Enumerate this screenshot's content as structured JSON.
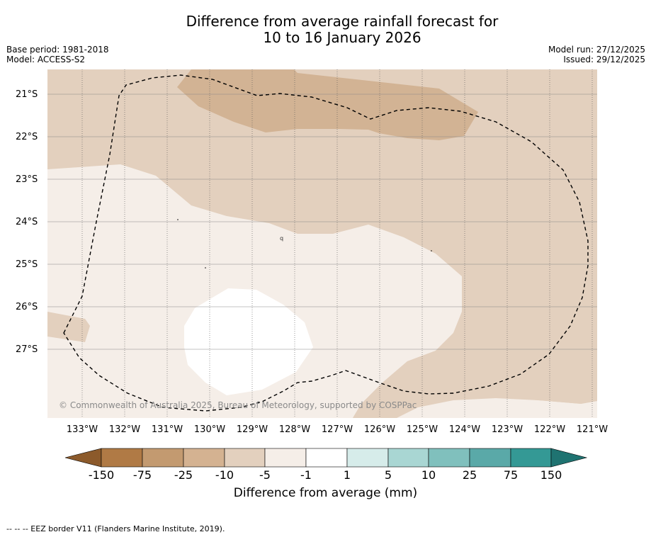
{
  "header": {
    "title_line1": "Difference from average rainfall forecast for",
    "title_line2": "10 to 16 January 2026",
    "base_period": "Base period: 1981-2018",
    "model": "Model: ACCESS-S2",
    "model_run": "Model run: 27/12/2025",
    "issued": "Issued: 29/12/2025"
  },
  "map": {
    "lat_labels": [
      "21°S",
      "22°S",
      "23°S",
      "24°S",
      "25°S",
      "26°S",
      "27°S"
    ],
    "lon_labels": [
      "133°W",
      "132°W",
      "131°W",
      "130°W",
      "129°W",
      "128°W",
      "127°W",
      "126°W",
      "125°W",
      "124°W",
      "123°W",
      "122°W",
      "121°W"
    ],
    "copyright": "© Commonwealth of Australia 2025, Bureau of Meteorology, supported by COSPPac"
  },
  "colorbar": {
    "labels": [
      "-150",
      "-75",
      "-25",
      "-10",
      "-5",
      "-1",
      "1",
      "5",
      "10",
      "25",
      "75",
      "150"
    ],
    "colors": [
      "#8c5a2b",
      "#b07a45",
      "#c39a70",
      "#d4b291",
      "#e3d0be",
      "#f5eee8",
      "#ffffff",
      "#d6ecea",
      "#a9d6d3",
      "#80c0bd",
      "#5aa9a8",
      "#349995",
      "#1f7371"
    ],
    "title": "Difference from average (mm)"
  },
  "footnote": "--  --  -- EEZ border V11 (Flanders Marine Institute, 2019)."
}
